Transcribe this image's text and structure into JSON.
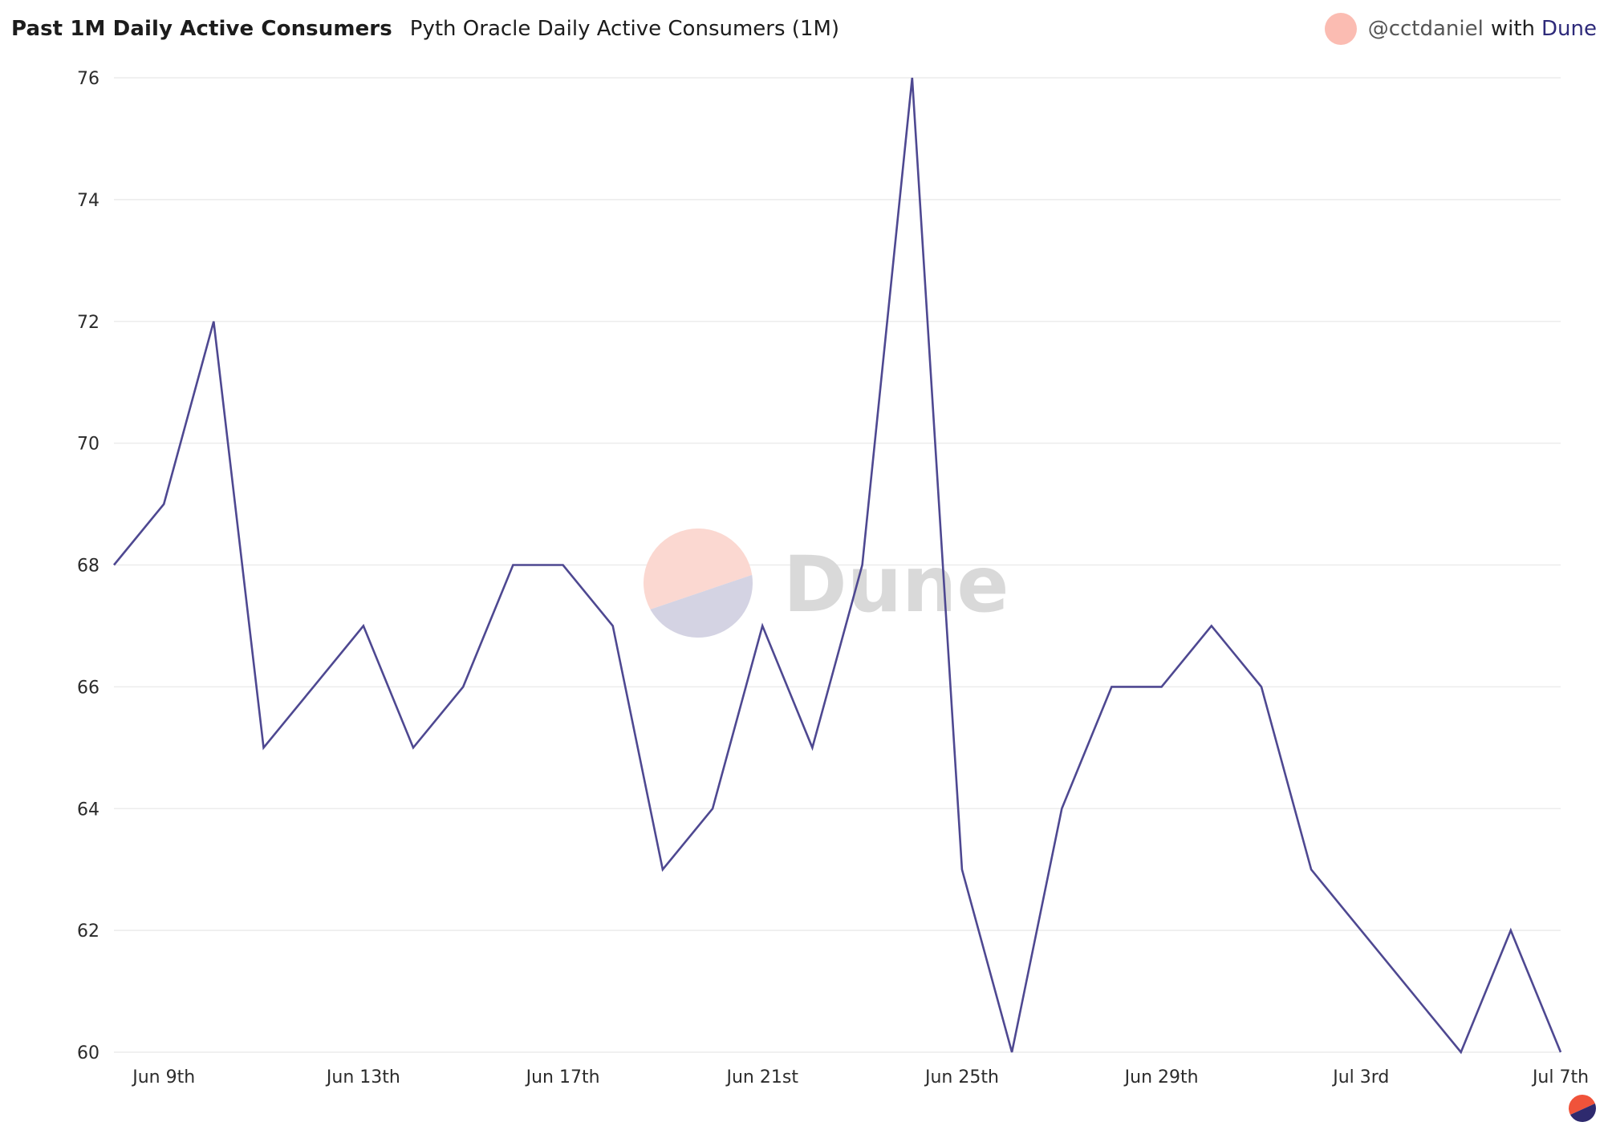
{
  "header": {
    "title": "Past 1M Daily Active Consumers",
    "subtitle": "Pyth Oracle Daily Active Consumers (1M)"
  },
  "attribution": {
    "author": "@cctdaniel",
    "with_text": "with",
    "brand": "Dune"
  },
  "watermark": {
    "text": "Dune"
  },
  "colors": {
    "line": "#4e4891",
    "grid": "#ececec",
    "watermark_top": "#fbd8d1",
    "watermark_bottom": "#d4d3e3",
    "watermark_text": "#d9d9d9",
    "logo_orange": "#f0533a",
    "logo_navy": "#2e2a6e"
  },
  "chart_data": {
    "type": "line",
    "title": "Past 1M Daily Active Consumers",
    "subtitle": "Pyth Oracle Daily Active Consumers (1M)",
    "xlabel": "",
    "ylabel": "",
    "x": [
      "Jun 8",
      "Jun 9",
      "Jun 10",
      "Jun 11",
      "Jun 12",
      "Jun 13",
      "Jun 14",
      "Jun 15",
      "Jun 16",
      "Jun 17",
      "Jun 18",
      "Jun 19",
      "Jun 20",
      "Jun 21",
      "Jun 22",
      "Jun 23",
      "Jun 24",
      "Jun 25",
      "Jun 26",
      "Jun 27",
      "Jun 28",
      "Jun 29",
      "Jun 30",
      "Jul 1",
      "Jul 2",
      "Jul 3",
      "Jul 4",
      "Jul 5",
      "Jul 6",
      "Jul 7"
    ],
    "series": [
      {
        "values": [
          68,
          69,
          72,
          65,
          66,
          67,
          65,
          66,
          68,
          68,
          67,
          63,
          64,
          67,
          65,
          68,
          76,
          63,
          60,
          64,
          66,
          66,
          67,
          66,
          63,
          62,
          61,
          60,
          62,
          60
        ]
      }
    ],
    "x_ticks": [
      {
        "index": 1,
        "label": "Jun 9th"
      },
      {
        "index": 5,
        "label": "Jun 13th"
      },
      {
        "index": 9,
        "label": "Jun 17th"
      },
      {
        "index": 13,
        "label": "Jun 21st"
      },
      {
        "index": 17,
        "label": "Jun 25th"
      },
      {
        "index": 21,
        "label": "Jun 29th"
      },
      {
        "index": 25,
        "label": "Jul 3rd"
      },
      {
        "index": 29,
        "label": "Jul 7th"
      }
    ],
    "y_ticks": [
      60,
      62,
      64,
      66,
      68,
      70,
      72,
      74,
      76
    ],
    "ylim": [
      60,
      76
    ],
    "grid": true,
    "legend": "none"
  }
}
